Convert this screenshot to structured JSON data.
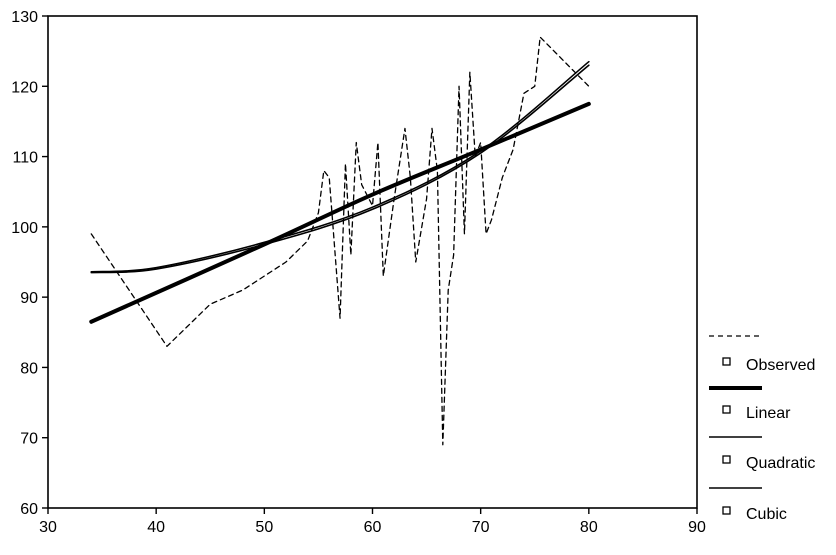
{
  "chart_data": {
    "type": "line",
    "title": "",
    "xlabel": "",
    "ylabel": "",
    "xlim": [
      30,
      90
    ],
    "ylim": [
      60,
      130
    ],
    "x_ticks": [
      30,
      40,
      50,
      60,
      70,
      80,
      90
    ],
    "y_ticks": [
      60,
      70,
      80,
      90,
      100,
      110,
      120,
      130
    ],
    "grid": false,
    "legend_position": "right",
    "series": [
      {
        "name": "Observed",
        "style": "dashed",
        "points": [
          [
            34,
            99
          ],
          [
            41,
            83
          ],
          [
            45,
            89
          ],
          [
            48,
            91
          ],
          [
            52,
            95
          ],
          [
            54,
            98
          ],
          [
            55,
            102
          ],
          [
            55.5,
            108
          ],
          [
            56,
            107
          ],
          [
            57,
            87
          ],
          [
            57.5,
            109
          ],
          [
            58,
            96
          ],
          [
            58.5,
            112
          ],
          [
            59,
            106
          ],
          [
            60,
            103
          ],
          [
            60.5,
            112
          ],
          [
            61,
            93
          ],
          [
            62,
            104
          ],
          [
            63,
            114
          ],
          [
            63.5,
            107
          ],
          [
            64,
            95
          ],
          [
            65,
            104
          ],
          [
            65.5,
            114
          ],
          [
            66,
            108
          ],
          [
            66.5,
            69
          ],
          [
            67,
            91
          ],
          [
            67.5,
            96
          ],
          [
            68,
            120
          ],
          [
            68.5,
            99
          ],
          [
            69,
            122
          ],
          [
            69.5,
            110
          ],
          [
            70,
            112
          ],
          [
            70.5,
            99
          ],
          [
            71,
            101
          ],
          [
            72,
            107
          ],
          [
            73,
            111
          ],
          [
            74,
            119
          ],
          [
            75,
            120
          ],
          [
            75.5,
            127
          ],
          [
            80,
            120
          ]
        ]
      },
      {
        "name": "Linear",
        "style": "thick",
        "points": [
          [
            34,
            86.5
          ],
          [
            50,
            97.5
          ],
          [
            60,
            104.6
          ],
          [
            70,
            111
          ],
          [
            80,
            117.5
          ]
        ]
      },
      {
        "name": "Quadratic",
        "style": "thin",
        "points": [
          [
            34,
            93.5
          ],
          [
            40,
            94
          ],
          [
            50,
            97.5
          ],
          [
            60,
            102.5
          ],
          [
            70,
            110.5
          ],
          [
            80,
            123
          ]
        ]
      },
      {
        "name": "Cubic",
        "style": "thin",
        "points": [
          [
            34,
            93.6
          ],
          [
            40,
            94.2
          ],
          [
            50,
            97.8
          ],
          [
            60,
            102.8
          ],
          [
            70,
            110.8
          ],
          [
            80,
            123.5
          ]
        ]
      }
    ]
  },
  "colors": {
    "line": "#000000",
    "background": "#ffffff"
  }
}
